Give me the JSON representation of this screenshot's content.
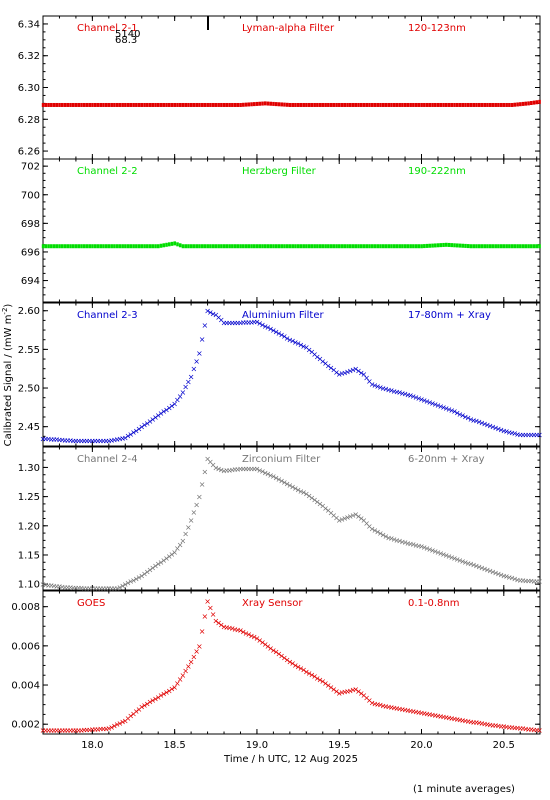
{
  "page": {
    "ylabel": "Calibrated Signal / (mW m",
    "ylabel_sup": "-2",
    "ylabel_end": ")",
    "xlabel": "Time / h UTC, 12 Aug 2025",
    "footnote": "(1 minute averages)",
    "stray_labels": [
      "5140",
      "68.3"
    ]
  },
  "chart_data": [
    {
      "type": "scatter",
      "name_label": "Channel 2-1",
      "filter_label": "Lyman-alpha Filter",
      "band_label": "120-123nm",
      "color": "#e00000",
      "ylim": [
        6.255,
        6.345
      ],
      "yticks": [
        6.26,
        6.28,
        6.3,
        6.32,
        6.34
      ],
      "ytick_labels": [
        "6.26",
        "6.28",
        "6.30",
        "6.32",
        "6.34"
      ],
      "xlim": [
        17.7,
        20.72
      ],
      "points": [
        [
          17.7,
          6.289
        ],
        [
          18.0,
          6.289
        ],
        [
          18.5,
          6.289
        ],
        [
          18.9,
          6.289
        ],
        [
          19.05,
          6.29
        ],
        [
          19.2,
          6.289
        ],
        [
          19.6,
          6.289
        ],
        [
          20.0,
          6.289
        ],
        [
          20.4,
          6.289
        ],
        [
          20.55,
          6.289
        ],
        [
          20.65,
          6.29
        ],
        [
          20.72,
          6.291
        ]
      ]
    },
    {
      "type": "scatter",
      "name_label": "Channel 2-2",
      "filter_label": "Herzberg Filter",
      "band_label": "190-222nm",
      "color": "#00dd00",
      "ylim": [
        692.5,
        702.5
      ],
      "yticks": [
        694,
        696,
        698,
        700,
        702
      ],
      "ytick_labels": [
        "694",
        "696",
        "698",
        "700",
        "702"
      ],
      "xlim": [
        17.7,
        20.72
      ],
      "points": [
        [
          17.7,
          696.4
        ],
        [
          18.0,
          696.4
        ],
        [
          18.4,
          696.4
        ],
        [
          18.5,
          696.6
        ],
        [
          18.55,
          696.4
        ],
        [
          19.0,
          696.4
        ],
        [
          19.5,
          696.4
        ],
        [
          20.0,
          696.4
        ],
        [
          20.15,
          696.5
        ],
        [
          20.3,
          696.4
        ],
        [
          20.72,
          696.4
        ]
      ]
    },
    {
      "type": "scatter",
      "name_label": "Channel 2-3",
      "filter_label": "Aluminium Filter",
      "band_label": "17-80nm + Xray",
      "color": "#0000cc",
      "ylim": [
        2.425,
        2.61
      ],
      "yticks": [
        2.45,
        2.5,
        2.55,
        2.6
      ],
      "ytick_labels": [
        "2.45",
        "2.50",
        "2.55",
        "2.60"
      ],
      "xlim": [
        17.7,
        20.72
      ],
      "points": [
        [
          17.7,
          2.435
        ],
        [
          17.9,
          2.432
        ],
        [
          18.1,
          2.432
        ],
        [
          18.2,
          2.436
        ],
        [
          18.3,
          2.45
        ],
        [
          18.4,
          2.465
        ],
        [
          18.5,
          2.48
        ],
        [
          18.55,
          2.495
        ],
        [
          18.6,
          2.515
        ],
        [
          18.65,
          2.545
        ],
        [
          18.7,
          2.6
        ],
        [
          18.75,
          2.595
        ],
        [
          18.8,
          2.585
        ],
        [
          18.9,
          2.585
        ],
        [
          19.0,
          2.586
        ],
        [
          19.1,
          2.575
        ],
        [
          19.2,
          2.563
        ],
        [
          19.3,
          2.553
        ],
        [
          19.4,
          2.535
        ],
        [
          19.5,
          2.518
        ],
        [
          19.6,
          2.525
        ],
        [
          19.65,
          2.518
        ],
        [
          19.7,
          2.505
        ],
        [
          19.8,
          2.498
        ],
        [
          19.9,
          2.493
        ],
        [
          20.0,
          2.486
        ],
        [
          20.1,
          2.478
        ],
        [
          20.2,
          2.47
        ],
        [
          20.3,
          2.46
        ],
        [
          20.4,
          2.453
        ],
        [
          20.5,
          2.445
        ],
        [
          20.6,
          2.44
        ],
        [
          20.72,
          2.44
        ]
      ]
    },
    {
      "type": "scatter",
      "name_label": "Channel 2-4",
      "filter_label": "Zirconium Filter",
      "band_label": "6-20nm + Xray",
      "color": "#777777",
      "ylim": [
        1.09,
        1.335
      ],
      "yticks": [
        1.1,
        1.15,
        1.2,
        1.25,
        1.3
      ],
      "ytick_labels": [
        "1.10",
        "1.15",
        "1.20",
        "1.25",
        "1.30"
      ],
      "xlim": [
        17.7,
        20.72
      ],
      "points": [
        [
          17.7,
          1.1
        ],
        [
          17.85,
          1.095
        ],
        [
          18.0,
          1.093
        ],
        [
          18.15,
          1.093
        ],
        [
          18.2,
          1.1
        ],
        [
          18.3,
          1.115
        ],
        [
          18.4,
          1.135
        ],
        [
          18.5,
          1.155
        ],
        [
          18.55,
          1.175
        ],
        [
          18.6,
          1.21
        ],
        [
          18.65,
          1.25
        ],
        [
          18.7,
          1.315
        ],
        [
          18.75,
          1.3
        ],
        [
          18.8,
          1.295
        ],
        [
          18.9,
          1.298
        ],
        [
          19.0,
          1.298
        ],
        [
          19.1,
          1.285
        ],
        [
          19.2,
          1.27
        ],
        [
          19.3,
          1.255
        ],
        [
          19.4,
          1.235
        ],
        [
          19.5,
          1.21
        ],
        [
          19.6,
          1.22
        ],
        [
          19.65,
          1.21
        ],
        [
          19.7,
          1.195
        ],
        [
          19.8,
          1.18
        ],
        [
          19.9,
          1.172
        ],
        [
          20.0,
          1.165
        ],
        [
          20.1,
          1.155
        ],
        [
          20.2,
          1.145
        ],
        [
          20.3,
          1.135
        ],
        [
          20.4,
          1.125
        ],
        [
          20.5,
          1.115
        ],
        [
          20.6,
          1.107
        ],
        [
          20.72,
          1.105
        ]
      ]
    },
    {
      "type": "scatter",
      "name_label": "GOES",
      "filter_label": "Xray Sensor",
      "band_label": "0.1-0.8nm",
      "color": "#e00000",
      "ylim": [
        0.0015,
        0.0088
      ],
      "yticks": [
        0.002,
        0.004,
        0.006,
        0.008
      ],
      "ytick_labels": [
        "0.002",
        "0.004",
        "0.006",
        "0.008"
      ],
      "xlim": [
        17.7,
        20.72
      ],
      "points": [
        [
          17.7,
          0.0017
        ],
        [
          17.9,
          0.0017
        ],
        [
          18.1,
          0.0018
        ],
        [
          18.2,
          0.0022
        ],
        [
          18.3,
          0.0029
        ],
        [
          18.4,
          0.0034
        ],
        [
          18.5,
          0.0039
        ],
        [
          18.55,
          0.0045
        ],
        [
          18.6,
          0.0052
        ],
        [
          18.65,
          0.006
        ],
        [
          18.7,
          0.0083
        ],
        [
          18.75,
          0.0073
        ],
        [
          18.8,
          0.007
        ],
        [
          18.9,
          0.0068
        ],
        [
          19.0,
          0.0064
        ],
        [
          19.1,
          0.0058
        ],
        [
          19.2,
          0.0052
        ],
        [
          19.3,
          0.0047
        ],
        [
          19.4,
          0.0042
        ],
        [
          19.5,
          0.0036
        ],
        [
          19.6,
          0.0038
        ],
        [
          19.65,
          0.0035
        ],
        [
          19.7,
          0.0031
        ],
        [
          19.8,
          0.0029
        ],
        [
          20.0,
          0.0026
        ],
        [
          20.2,
          0.0023
        ],
        [
          20.4,
          0.002
        ],
        [
          20.5,
          0.0019
        ],
        [
          20.72,
          0.0017
        ]
      ]
    }
  ],
  "xaxis": {
    "xlim": [
      17.7,
      20.72
    ],
    "ticks": [
      18.0,
      18.5,
      19.0,
      19.5,
      20.0,
      20.5
    ],
    "tick_labels": [
      "18.0",
      "18.5",
      "19.0",
      "19.5",
      "20.0",
      "20.5"
    ]
  }
}
